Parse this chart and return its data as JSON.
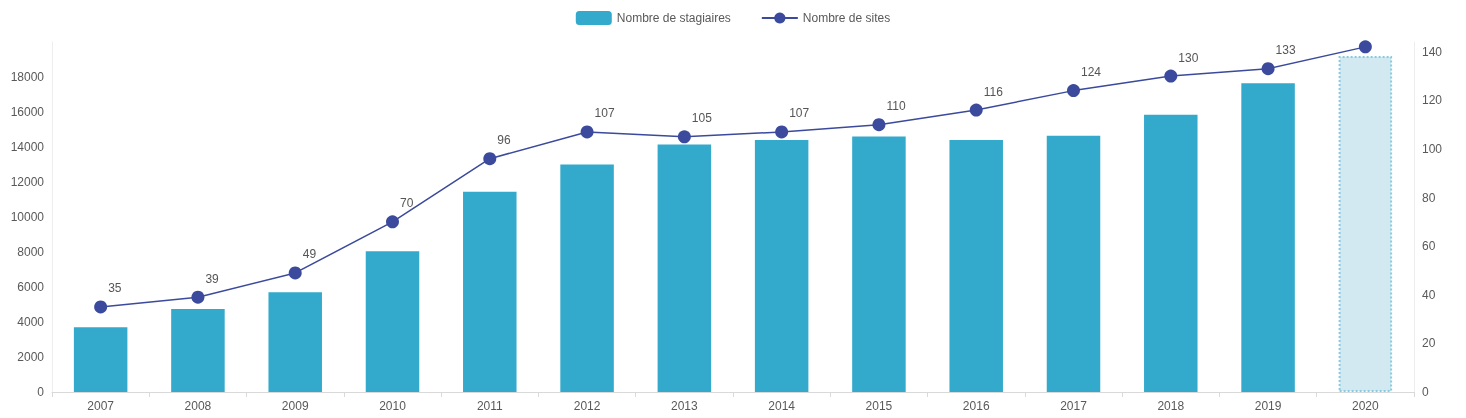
{
  "chart_data": {
    "type": "bar",
    "categories": [
      "2007",
      "2008",
      "2009",
      "2010",
      "2011",
      "2012",
      "2013",
      "2014",
      "2015",
      "2016",
      "2017",
      "2018",
      "2019",
      "2020"
    ],
    "series": [
      {
        "name": "Nombre de stagiaires",
        "color": "#33aacc",
        "colors": [
          "#33aacc",
          "#33aacc",
          "#33aacc",
          "#33aacc",
          "#33aacc",
          "#33aacc",
          "#33aacc",
          "#33aacc",
          "#33aacc",
          "#33aacc",
          "#33aacc",
          "#33aacc",
          "#33aacc",
          "#d2e9f1"
        ],
        "values": [
          3700,
          4750,
          5700,
          8050,
          11450,
          13000,
          14150,
          14400,
          14600,
          14400,
          14650,
          15850,
          17650,
          19200
        ]
      },
      {
        "name": "Nombre de sites",
        "type": "line",
        "axis": "y2",
        "color": "#3b4a9c",
        "marker": "circle",
        "values": [
          35,
          39,
          49,
          70,
          96,
          107,
          105,
          107,
          110,
          116,
          124,
          130,
          133,
          142
        ],
        "value_labels": [
          "35",
          "39",
          "49",
          "70",
          "96",
          "107",
          "105",
          "107",
          "110",
          "116",
          "124",
          "130",
          "133",
          null
        ]
      }
    ],
    "ylim": [
      0,
      20000
    ],
    "yticks": [
      0,
      2000,
      4000,
      6000,
      8000,
      10000,
      12000,
      14000,
      16000,
      18000
    ],
    "y2lim": [
      0,
      144
    ],
    "y2ticks": [
      0,
      20,
      40,
      60,
      80,
      100,
      120,
      140
    ],
    "grid": false,
    "legend": "top"
  }
}
